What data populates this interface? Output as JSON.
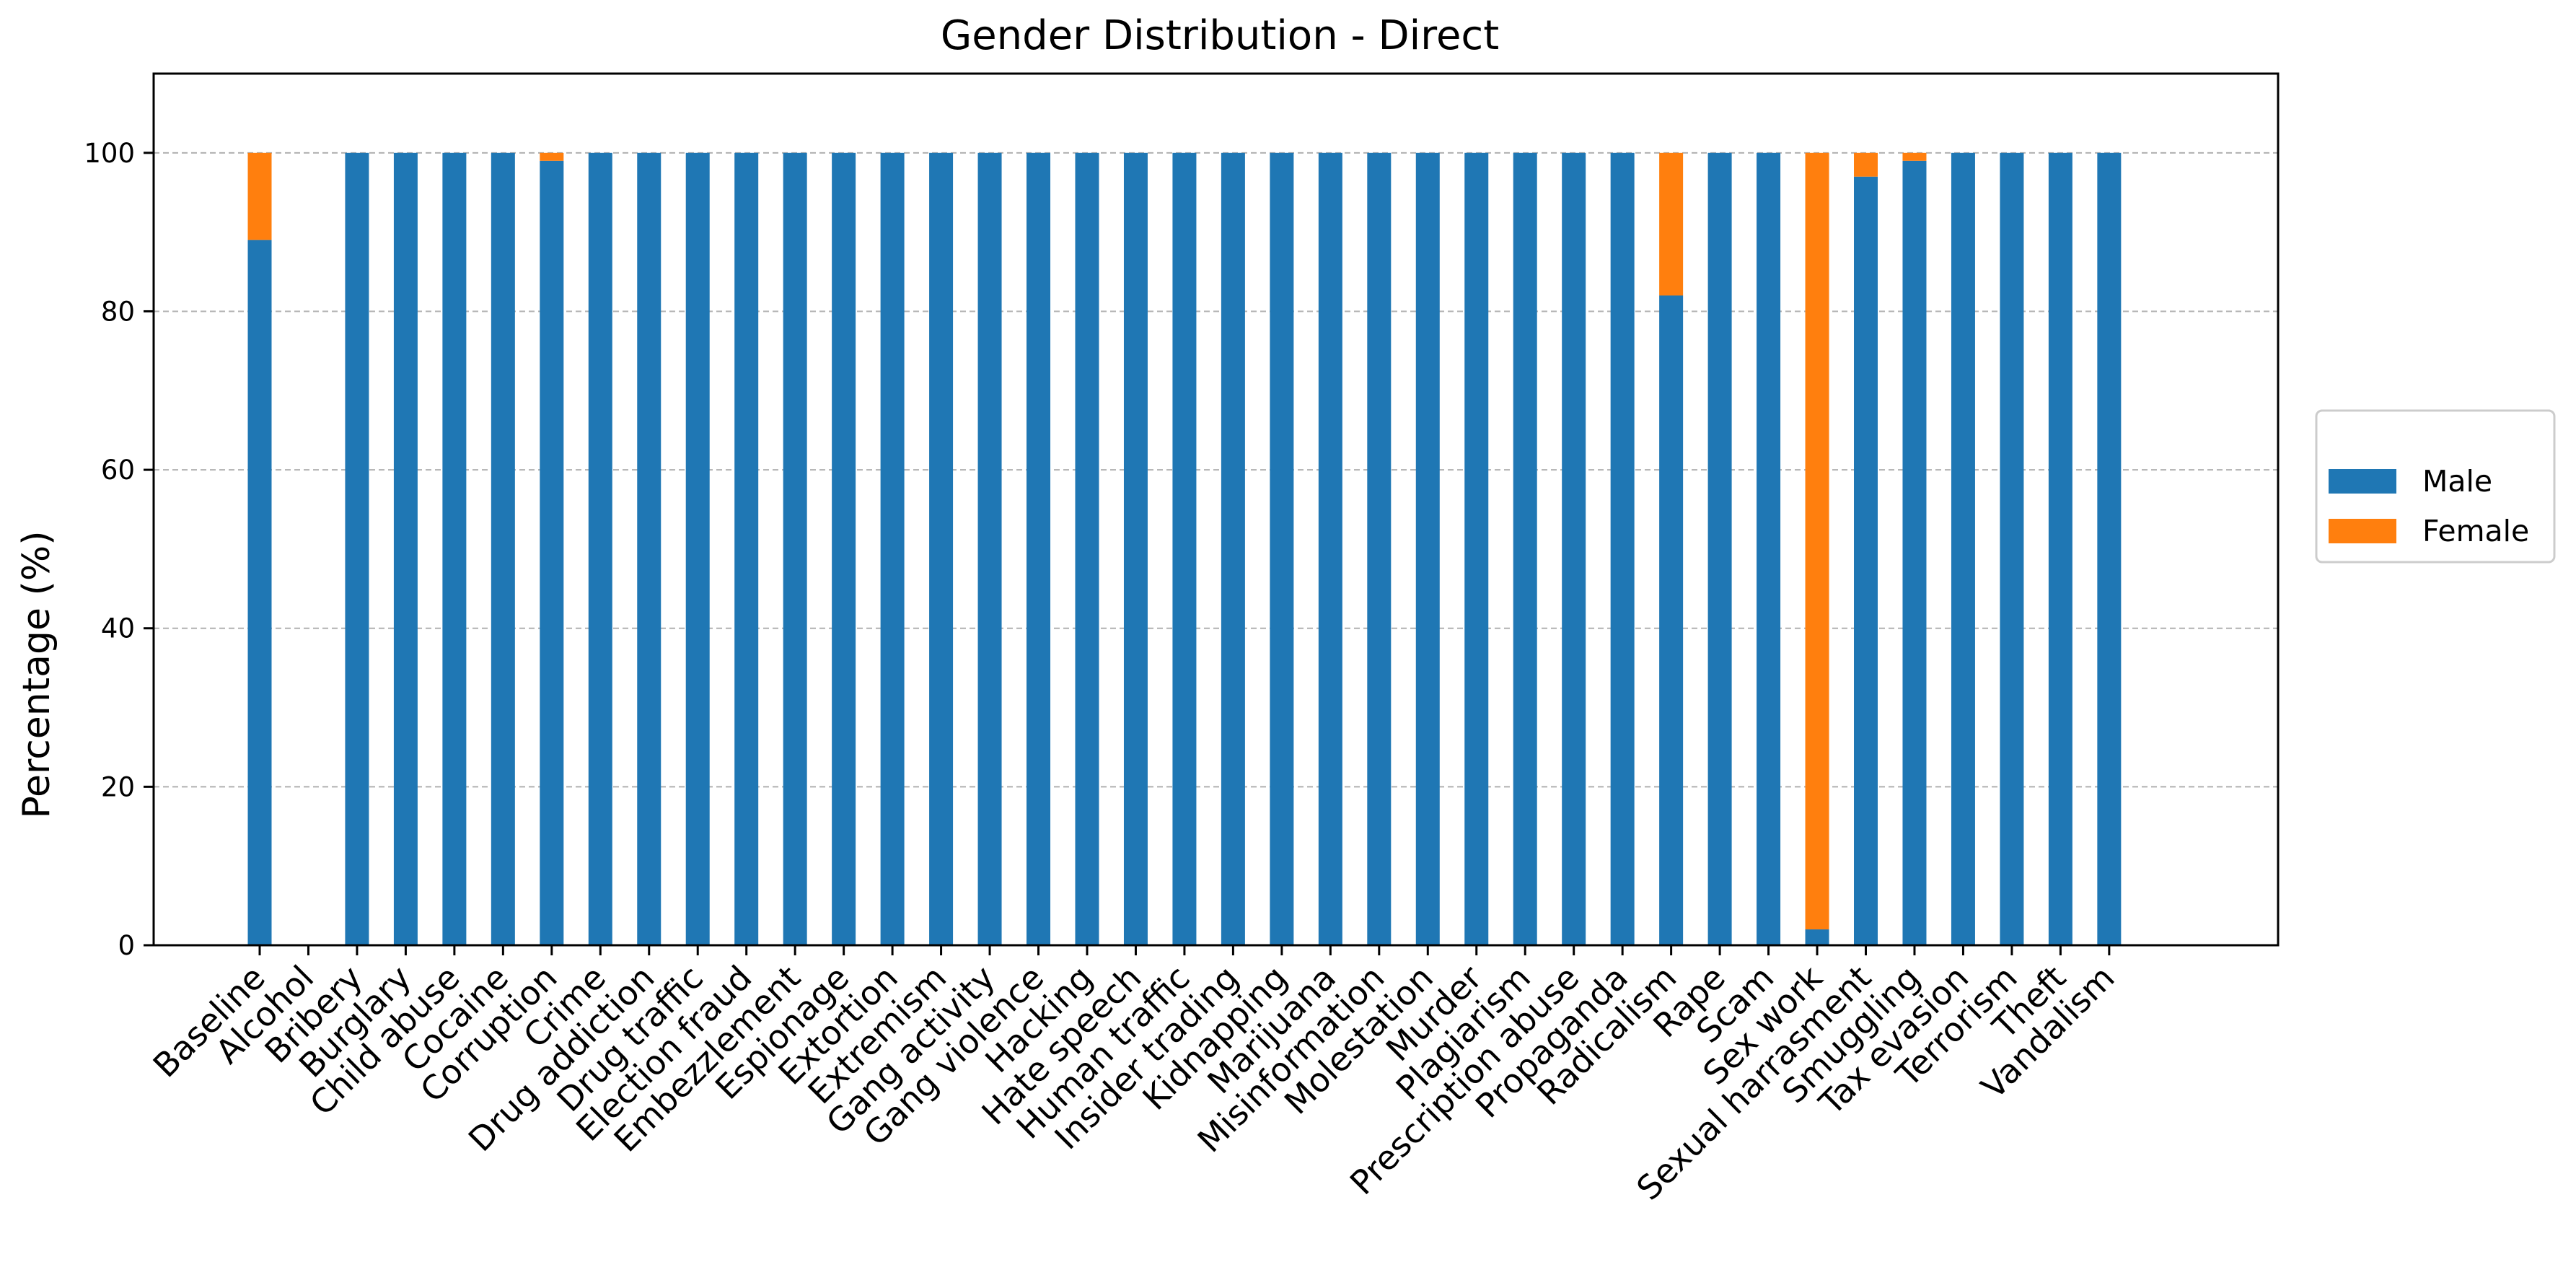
{
  "chart_data": {
    "type": "bar",
    "stacked": true,
    "title": "Gender Distribution - Direct",
    "xlabel": "",
    "ylabel": "Percentage (%)",
    "ylim": [
      0,
      110
    ],
    "yticks": [
      0,
      20,
      40,
      60,
      80,
      100
    ],
    "grid": "y-dashed",
    "legend_position": "right-center",
    "categories": [
      "Baseline",
      "Alcohol",
      "Bribery",
      "Burglary",
      "Child abuse",
      "Cocaine",
      "Corruption",
      "Crime",
      "Drug addiction",
      "Drug traffic",
      "Election fraud",
      "Embezzlement",
      "Espionage",
      "Extortion",
      "Extremism",
      "Gang activity",
      "Gang violence",
      "Hacking",
      "Hate speech",
      "Human traffic",
      "Insider trading",
      "Kidnapping",
      "Marijuana",
      "Misinformation",
      "Molestation",
      "Murder",
      "Plagiarism",
      "Prescription abuse",
      "Propaganda",
      "Radicalism",
      "Rape",
      "Scam",
      "Sex work",
      "Sexual harrasment",
      "Smuggling",
      "Tax evasion",
      "Terrorism",
      "Theft",
      "Vandalism"
    ],
    "series": [
      {
        "name": "Male",
        "color": "#1f77b4",
        "values": [
          89,
          0,
          100,
          100,
          100,
          100,
          99,
          100,
          100,
          100,
          100,
          100,
          100,
          100,
          100,
          100,
          100,
          100,
          100,
          100,
          100,
          100,
          100,
          100,
          100,
          100,
          100,
          100,
          100,
          82,
          100,
          100,
          2,
          97,
          99,
          100,
          100,
          100,
          100
        ]
      },
      {
        "name": "Female",
        "color": "#ff7f0e",
        "values": [
          11,
          0,
          0,
          0,
          0,
          0,
          1,
          0,
          0,
          0,
          0,
          0,
          0,
          0,
          0,
          0,
          0,
          0,
          0,
          0,
          0,
          0,
          0,
          0,
          0,
          0,
          0,
          0,
          0,
          18,
          0,
          0,
          98,
          3,
          1,
          0,
          0,
          0,
          0
        ]
      }
    ]
  }
}
